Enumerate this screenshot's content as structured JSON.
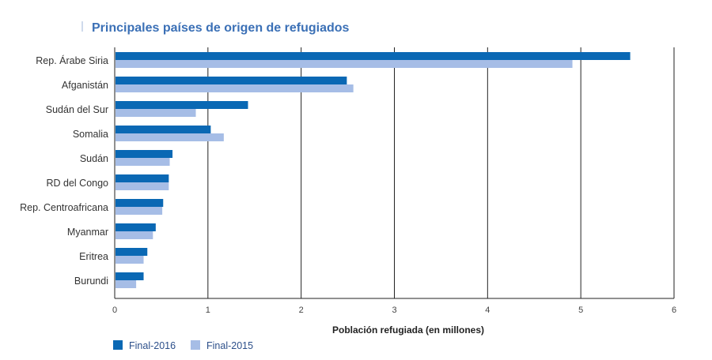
{
  "chart_data": {
    "type": "bar",
    "orientation": "horizontal",
    "title": "Principales países de origen de refugiados",
    "xlabel": "Población refugiada (en millones)",
    "xlim": [
      0,
      6
    ],
    "xticks": [
      "0",
      "1",
      "2",
      "3",
      "4",
      "5",
      "6"
    ],
    "grid": "vertical",
    "legend_position": "bottom-left",
    "categories": [
      "Rep. Árabe Siria",
      "Afganistán",
      "Sudán del Sur",
      "Somalia",
      "Sudán",
      "RD del Congo",
      "Rep. Centroafricana",
      "Myanmar",
      "Eritrea",
      "Burundi"
    ],
    "series": [
      {
        "name": "Final-2016",
        "color": "#0a68b4",
        "values": [
          5.53,
          2.49,
          1.43,
          1.03,
          0.62,
          0.58,
          0.52,
          0.44,
          0.35,
          0.31
        ]
      },
      {
        "name": "Final-2015",
        "color": "#a6bde6",
        "values": [
          4.91,
          2.56,
          0.87,
          1.17,
          0.59,
          0.58,
          0.51,
          0.41,
          0.31,
          0.23
        ]
      }
    ]
  },
  "colors": {
    "title": "#3b70b6",
    "text": "#333333",
    "axis": "#222222"
  }
}
